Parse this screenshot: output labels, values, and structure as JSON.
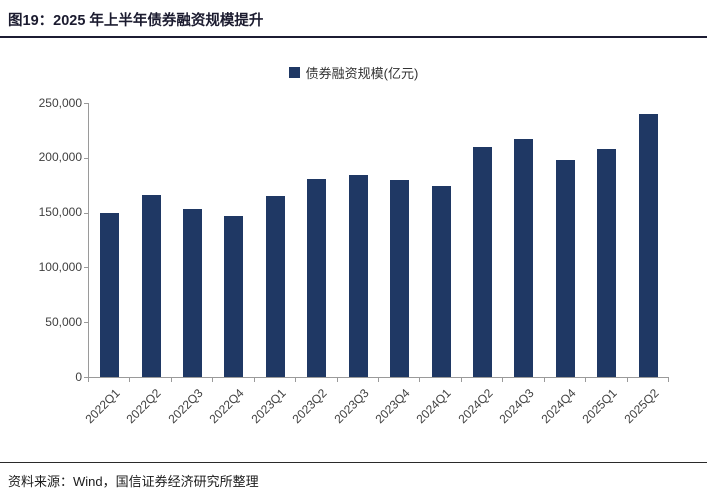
{
  "header": {
    "title": "图19：2025 年上半年债券融资规模提升"
  },
  "legend": {
    "label": "债券融资规模(亿元)",
    "marker_color": "#1f3864"
  },
  "footer": {
    "source": "资料来源：Wind，国信证券经济研究所整理"
  },
  "colors": {
    "bar": "#1f3864",
    "axis": "#9a9a9a",
    "tick_text": "#404040",
    "rule": "#1c1c33"
  },
  "chart_data": {
    "type": "bar",
    "title": "图19：2025 年上半年债券融资规模提升",
    "legend_entries": [
      "债券融资规模(亿元)"
    ],
    "legend_position": "top-center",
    "xlabel": "",
    "ylabel": "",
    "grid": false,
    "categories": [
      "2022Q1",
      "2022Q2",
      "2022Q3",
      "2022Q4",
      "2023Q1",
      "2023Q2",
      "2023Q3",
      "2023Q4",
      "2024Q1",
      "2024Q2",
      "2024Q3",
      "2024Q4",
      "2025Q1",
      "2025Q2"
    ],
    "values": [
      150000,
      166000,
      153000,
      146500,
      165500,
      180500,
      184500,
      180000,
      174000,
      209500,
      217000,
      198000,
      208000,
      240000
    ],
    "ylim": [
      0,
      250000
    ],
    "ytick_interval": 50000,
    "ytick_labels": [
      "0",
      "50,000",
      "100,000",
      "150,000",
      "200,000",
      "250,000"
    ],
    "bar_color": "#1f3864"
  }
}
